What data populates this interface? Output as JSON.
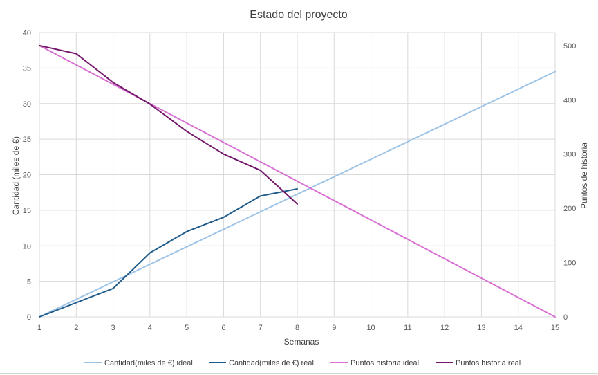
{
  "chart_data": {
    "type": "line",
    "title": "Estado del proyecto",
    "xlabel": "Semanas",
    "ylabel_left": "Cantidad (miles de €)",
    "ylabel_right": "Puntos de historia",
    "x": [
      1,
      2,
      3,
      4,
      5,
      6,
      7,
      8,
      9,
      10,
      11,
      12,
      13,
      14,
      15
    ],
    "ylim_left": [
      0,
      40
    ],
    "yticks_left": [
      0,
      5,
      10,
      15,
      20,
      25,
      30,
      35,
      40
    ],
    "ylim_right": [
      0,
      524
    ],
    "yticks_right": [
      0,
      100,
      200,
      300,
      400,
      500
    ],
    "grid": true,
    "legend_position": "bottom",
    "series": [
      {
        "name": "Cantidad(miles de €) ideal",
        "axis": "left",
        "color": "#9dc3e6",
        "x": [
          1,
          15
        ],
        "values": [
          0,
          34.5
        ]
      },
      {
        "name": "Cantidad(miles de €) real",
        "axis": "left",
        "color": "#1f5c8b",
        "x": [
          1,
          2,
          3,
          4,
          5,
          6,
          7,
          8
        ],
        "values": [
          0,
          2,
          4,
          9,
          12,
          14,
          17,
          18
        ]
      },
      {
        "name": "Puntos historia ideal",
        "axis": "right",
        "color": "#d86fd2",
        "x": [
          1,
          15
        ],
        "values": [
          500,
          0
        ]
      },
      {
        "name": "Puntos historia real",
        "axis": "right",
        "color": "#73176b",
        "x": [
          1,
          2,
          3,
          4,
          5,
          6,
          7,
          8
        ],
        "values": [
          500,
          485,
          432,
          392,
          342,
          300,
          270,
          208
        ]
      }
    ]
  }
}
